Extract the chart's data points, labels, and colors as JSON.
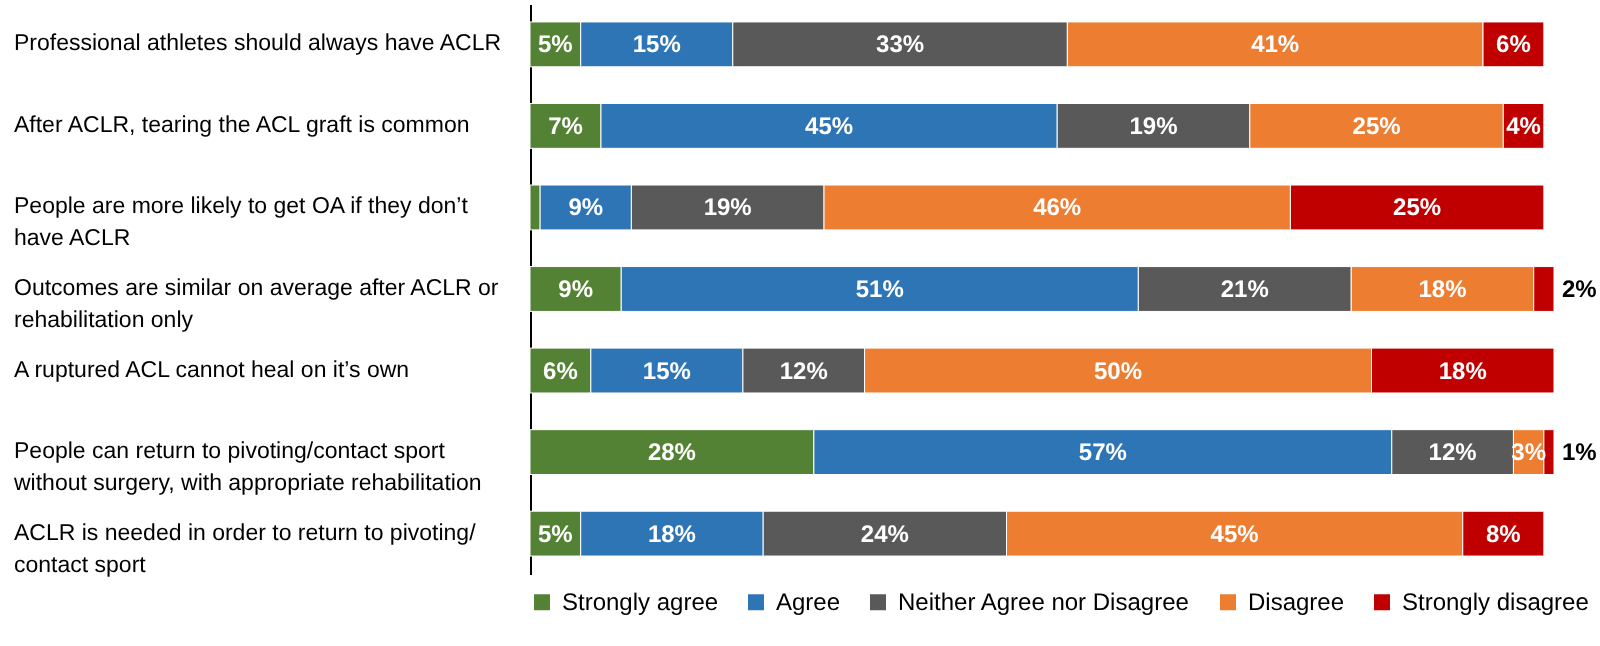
{
  "chart_data": {
    "type": "bar",
    "orientation": "horizontal",
    "stacked": true,
    "xlim": [
      0,
      101
    ],
    "tick_labels": "y",
    "legend": "bottom",
    "categories": [
      "Professional athletes should always have ACLR",
      "After ACLR, tearing the ACL graft is common",
      "People are more likely to get OA if they don’t have ACLR",
      "Outcomes are similar on average after ACLR or rehabilitation only",
      "A ruptured ACL cannot heal on it’s own",
      "People can return to pivoting/contact sport without surgery, with appropriate rehabilitation",
      "ACLR is needed in order to return to pivoting/ contact sport"
    ],
    "series": [
      {
        "name": "Strongly agree",
        "color": "#548235",
        "values": [
          5,
          7,
          1,
          9,
          6,
          28,
          5
        ],
        "value_labels": [
          "5%",
          "7%",
          null,
          "9%",
          "6%",
          "28%",
          "5%"
        ]
      },
      {
        "name": "Agree",
        "color": "#2e75b6",
        "values": [
          15,
          45,
          9,
          51,
          15,
          57,
          18
        ],
        "value_labels": [
          "15%",
          "45%",
          "9%",
          "51%",
          "15%",
          "57%",
          "18%"
        ]
      },
      {
        "name": "Neither Agree nor Disagree",
        "color": "#595959",
        "values": [
          33,
          19,
          19,
          21,
          12,
          12,
          24
        ],
        "value_labels": [
          "33%",
          "19%",
          "19%",
          "21%",
          "12%",
          "12%",
          "24%"
        ]
      },
      {
        "name": "Disagree",
        "color": "#ed7d31",
        "values": [
          41,
          25,
          46,
          18,
          50,
          3,
          45
        ],
        "value_labels": [
          "41%",
          "25%",
          "46%",
          "18%",
          "50%",
          "3%",
          "45%"
        ]
      },
      {
        "name": "Strongly disagree",
        "color": "#c00000",
        "values": [
          6,
          4,
          25,
          2,
          18,
          1,
          8
        ],
        "value_labels": [
          "6%",
          "4%",
          "25%",
          "2%",
          "18%",
          "1%",
          "8%"
        ]
      }
    ]
  }
}
